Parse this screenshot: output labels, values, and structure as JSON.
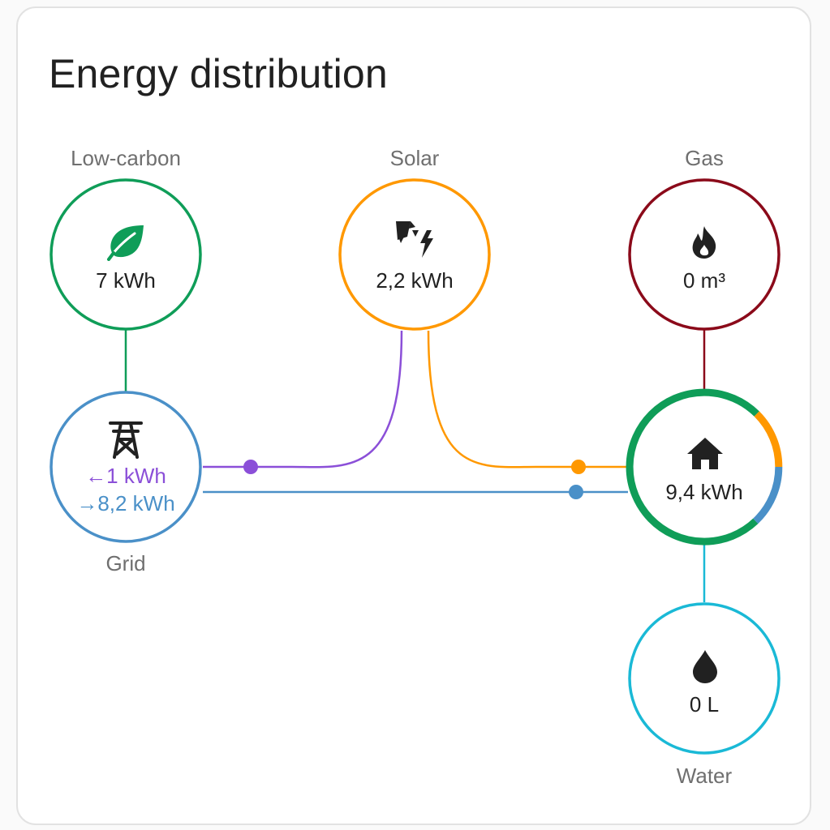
{
  "card": {
    "title": "Energy distribution"
  },
  "nodes": {
    "low_carbon": {
      "label": "Low-carbon",
      "value": "7 kWh",
      "icon": "leaf-icon",
      "color": "#0f9d58"
    },
    "solar": {
      "label": "Solar",
      "value": "2,2 kWh",
      "icon": "solar-power-icon",
      "color": "#ff9800"
    },
    "gas": {
      "label": "Gas",
      "value": "0 m³",
      "icon": "fire-icon",
      "color": "#8b0a1a"
    },
    "grid": {
      "label": "Grid",
      "icon": "transmission-tower-icon",
      "color": "#4a90c8",
      "returned": "1 kWh",
      "consumed": "8,2 kWh",
      "returned_color": "#8b4fd8"
    },
    "home": {
      "value": "9,4 kWh",
      "icon": "home-icon",
      "color": "#0f9d58"
    },
    "water": {
      "label": "Water",
      "value": "0 L",
      "icon": "water-drop-icon",
      "color": "#1ab9d6"
    }
  }
}
